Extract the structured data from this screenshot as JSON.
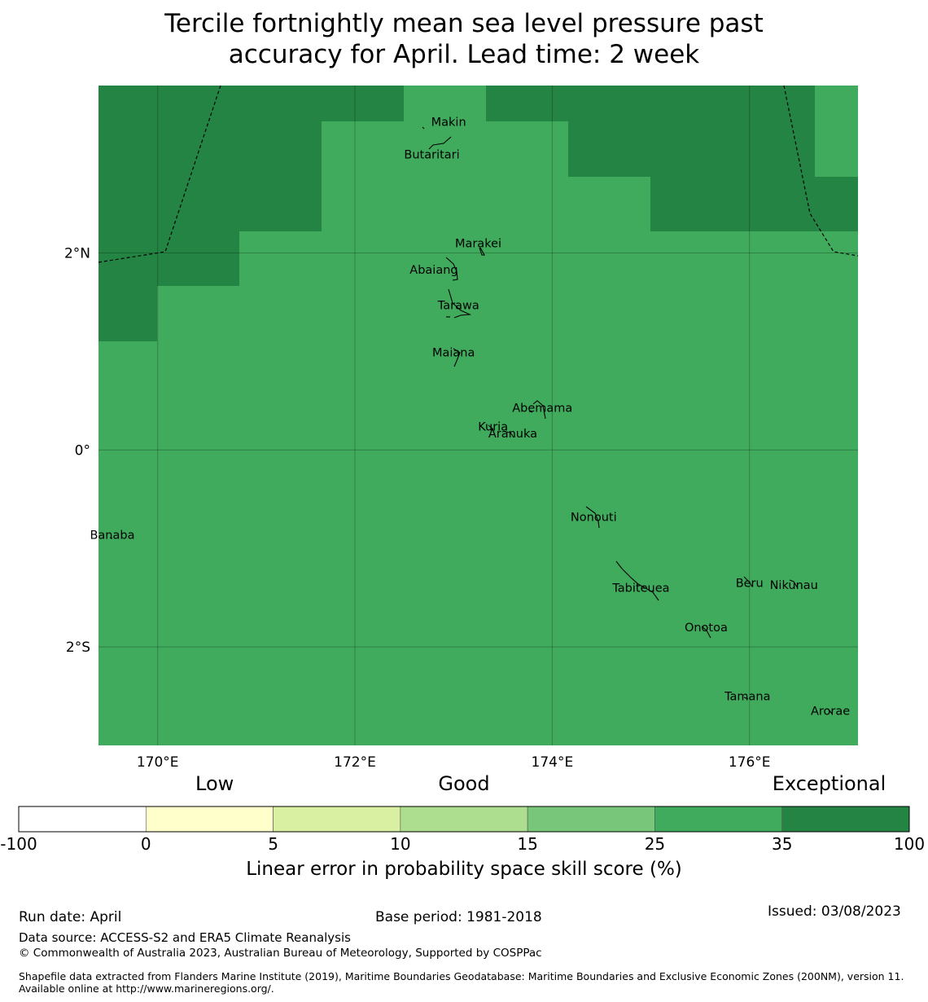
{
  "title_line1": "Tercile fortnightly mean sea level pressure past",
  "title_line2": "accuracy for April. Lead time: 2 week",
  "map": {
    "lon_range": [
      169.4,
      177.1
    ],
    "lat_range": [
      -3.0,
      3.7
    ],
    "x_ticks": [
      {
        "value": 170,
        "label": "170°E"
      },
      {
        "value": 172,
        "label": "172°E"
      },
      {
        "value": 174,
        "label": "174°E"
      },
      {
        "value": 176,
        "label": "176°E"
      }
    ],
    "y_ticks": [
      {
        "value": 2,
        "label": "2°N"
      },
      {
        "value": 0,
        "label": "0°"
      },
      {
        "value": -2,
        "label": "2°S"
      }
    ],
    "colors": {
      "exceptional": "#238443",
      "good_high": "#41ab5d"
    },
    "islands": [
      {
        "name": "Makin",
        "lon": 172.95,
        "lat": 3.33
      },
      {
        "name": "Butaritari",
        "lon": 172.78,
        "lat": 3.0
      },
      {
        "name": "Marakei",
        "lon": 173.25,
        "lat": 2.1
      },
      {
        "name": "Abaiang",
        "lon": 172.8,
        "lat": 1.83
      },
      {
        "name": "Tarawa",
        "lon": 173.05,
        "lat": 1.47
      },
      {
        "name": "Maiana",
        "lon": 173.0,
        "lat": 0.99
      },
      {
        "name": "Abemama",
        "lon": 173.9,
        "lat": 0.43
      },
      {
        "name": "Kuria",
        "lon": 173.4,
        "lat": 0.24
      },
      {
        "name": "Aranuka",
        "lon": 173.6,
        "lat": 0.17
      },
      {
        "name": "Nonouti",
        "lon": 174.42,
        "lat": -0.68
      },
      {
        "name": "Banaba",
        "lon": 169.54,
        "lat": -0.86
      },
      {
        "name": "Beru",
        "lon": 176.0,
        "lat": -1.35
      },
      {
        "name": "Nikunau",
        "lon": 176.45,
        "lat": -1.37
      },
      {
        "name": "Tabiteuea",
        "lon": 174.9,
        "lat": -1.4
      },
      {
        "name": "Onotoa",
        "lon": 175.56,
        "lat": -1.8
      },
      {
        "name": "Tamana",
        "lon": 175.98,
        "lat": -2.5
      },
      {
        "name": "Arorae",
        "lon": 176.82,
        "lat": -2.65
      }
    ]
  },
  "colorbar": {
    "categories": [
      {
        "label": "Low",
        "pos": 0.22
      },
      {
        "label": "Good",
        "pos": 0.5
      },
      {
        "label": "Exceptional",
        "pos": 0.91
      }
    ],
    "ticks": [
      "-100",
      "0",
      "5",
      "10",
      "15",
      "25",
      "35",
      "100"
    ],
    "colors": [
      "#ffffff",
      "#ffffcc",
      "#d9f0a3",
      "#addd8e",
      "#78c679",
      "#41ab5d",
      "#238443"
    ],
    "label": "Linear error in probability space skill score (%)"
  },
  "footer": {
    "run_date": "Run date: April",
    "base_period": "Base period: 1981-2018",
    "issued": "Issued: 03/08/2023",
    "data_source": "Data source: ACCESS-S2 and ERA5 Climate Reanalysis",
    "copyright": "© Commonwealth of Australia 2023, Australian Bureau of Meteorology, Supported by COSPPac",
    "shapefile": "Shapefile data extracted from Flanders Marine Institute (2019), Maritime Boundaries Geodatabase: Maritime Boundaries and Exclusive Economic Zones (200NM), version 11. Available online at http://www.marineregions.org/."
  }
}
